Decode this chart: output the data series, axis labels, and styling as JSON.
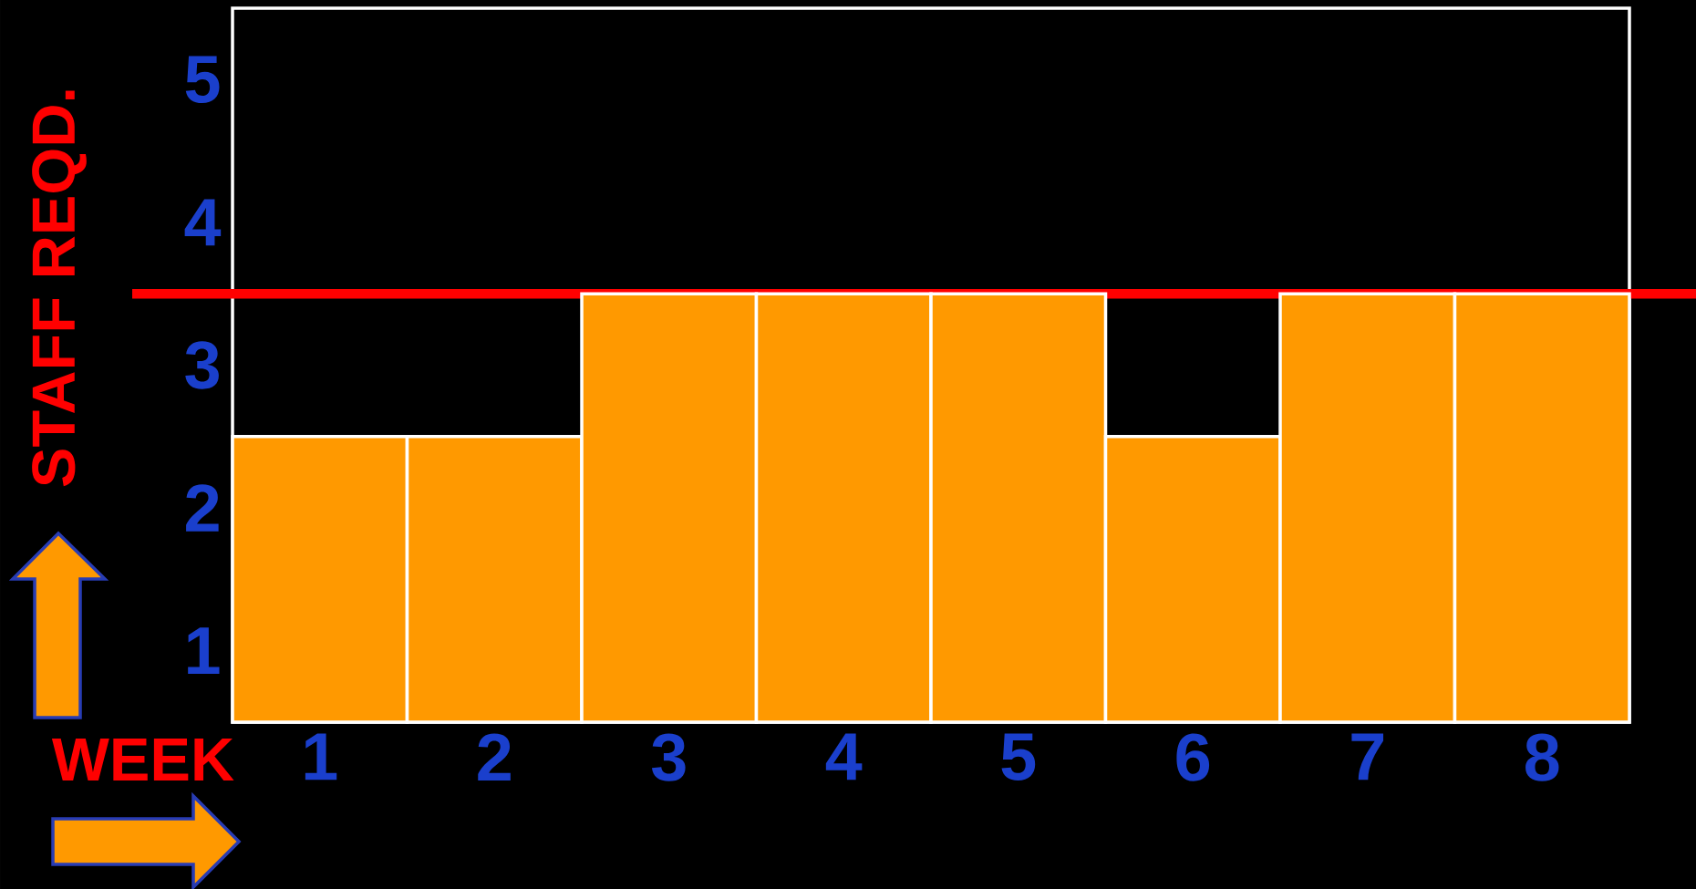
{
  "chart_data": {
    "type": "bar",
    "xlabel": "WEEK",
    "ylabel": "STAFF REQD.",
    "categories": [
      "1",
      "2",
      "3",
      "4",
      "5",
      "6",
      "7",
      "8"
    ],
    "values": [
      2,
      2,
      3,
      3,
      3,
      2,
      3,
      3
    ],
    "color": "#ff9900",
    "ylim": [
      0,
      5
    ],
    "yticks": [
      {
        "value": 0.5,
        "label": "1"
      },
      {
        "value": 1.5,
        "label": "2"
      },
      {
        "value": 2.5,
        "label": "3"
      },
      {
        "value": 3.5,
        "label": "4"
      },
      {
        "value": 4.5,
        "label": "5"
      }
    ],
    "ref_lines": [
      {
        "axis": "y",
        "value": 3,
        "color": "#ff0000"
      }
    ]
  }
}
